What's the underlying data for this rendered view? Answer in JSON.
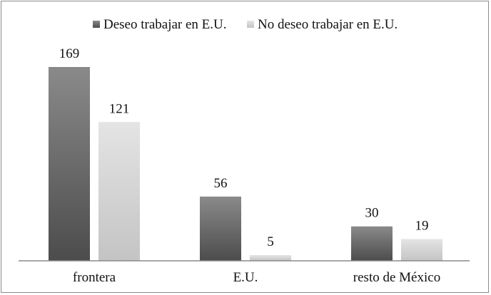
{
  "chart_data": {
    "type": "bar",
    "categories": [
      "frontera",
      "E.U.",
      "resto de México"
    ],
    "series": [
      {
        "name": "Deseo trabajar en E.U.",
        "values": [
          169,
          56,
          30
        ],
        "color": "#6e6e6e"
      },
      {
        "name": "No deseo trabajar en E.U.",
        "values": [
          121,
          5,
          19
        ],
        "color": "#d6d6d6"
      }
    ],
    "data_labels": true,
    "legend": "top-center",
    "grid": false,
    "ylim": [
      0,
      169
    ]
  }
}
